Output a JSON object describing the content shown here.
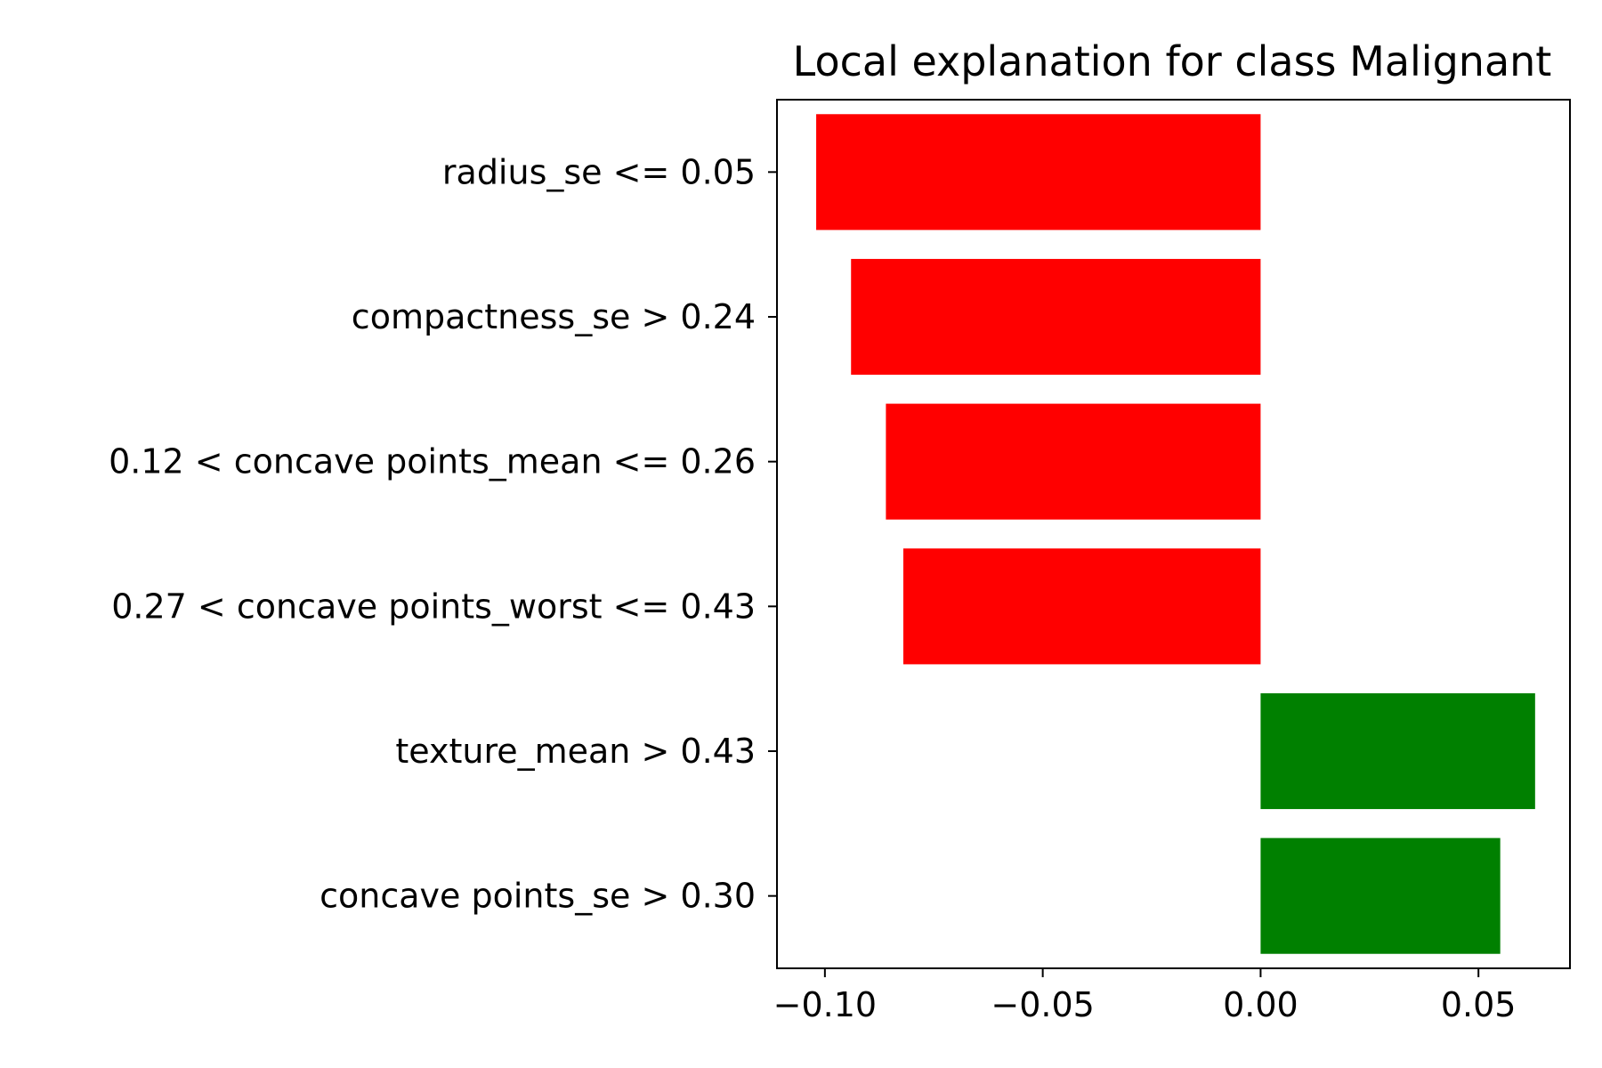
{
  "chart_data": {
    "type": "bar",
    "orientation": "horizontal",
    "title": "Local explanation for class Malignant",
    "xlabel": "",
    "ylabel": "",
    "categories": [
      "radius_se <= 0.05",
      "compactness_se > 0.24",
      "0.12 < concave points_mean <= 0.26",
      "0.27 < concave points_worst <= 0.43",
      "texture_mean > 0.43",
      "concave points_se > 0.30"
    ],
    "values": [
      -0.102,
      -0.094,
      -0.086,
      -0.082,
      0.063,
      0.055
    ],
    "xlim": [
      -0.111,
      0.071
    ],
    "xticks": [
      -0.1,
      -0.05,
      0.0,
      0.05
    ],
    "xtick_labels": [
      "−0.10",
      "−0.05",
      "0.00",
      "0.05"
    ],
    "colors": {
      "negative": "#ff0000",
      "positive": "#008000"
    },
    "grid": false,
    "legend": "none"
  }
}
